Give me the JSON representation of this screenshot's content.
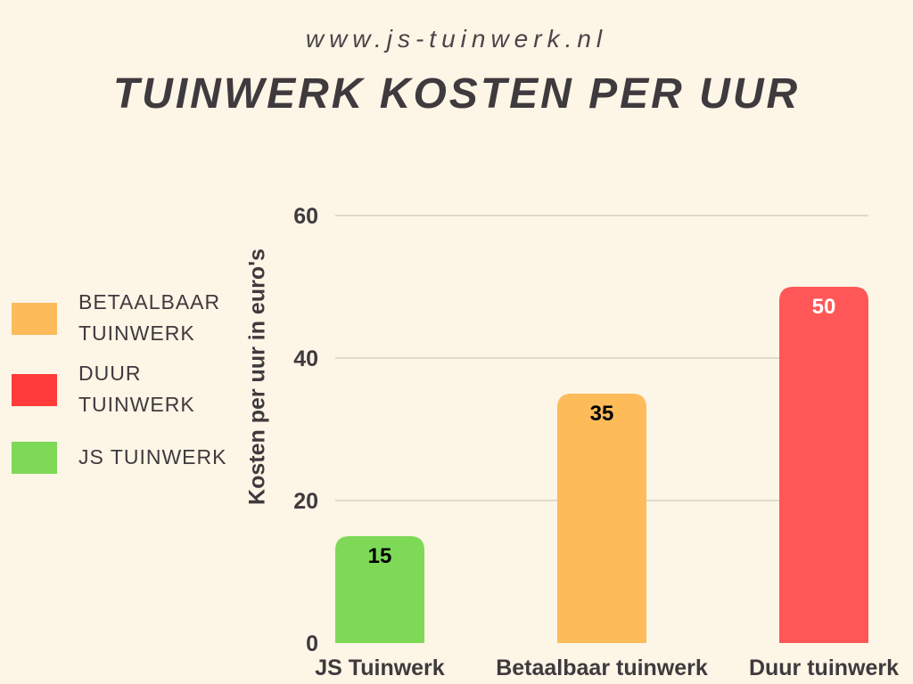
{
  "header": {
    "url": "www.js-tuinwerk.nl",
    "title": "TUINWERK KOSTEN PER UUR"
  },
  "legend": [
    {
      "label": "BETAALBAAR TUINWERK",
      "color": "#fdbb5a"
    },
    {
      "label": "DUUR TUINWERK",
      "color": "#ff3b3b"
    },
    {
      "label": "JS TUINWERK",
      "color": "#7ed957"
    }
  ],
  "chart_data": {
    "type": "bar",
    "categories": [
      "JS Tuinwerk",
      "Betaalbaar tuinwerk",
      "Duur tuinwerk"
    ],
    "values": [
      15,
      35,
      50
    ],
    "colors": [
      "#7ed957",
      "#fdbb5a",
      "#ff5757"
    ],
    "value_label_colors": [
      "#000000",
      "#000000",
      "#ffffff"
    ],
    "data_labels": [
      "15",
      "35",
      "50"
    ],
    "title": "TUINWERK KOSTEN PER UUR",
    "xlabel": "",
    "ylabel": "Kosten per uur in euro's",
    "ylim": [
      0,
      60
    ],
    "yticks": [
      0,
      20,
      40,
      60
    ],
    "grid": true,
    "legend_position": "left"
  }
}
